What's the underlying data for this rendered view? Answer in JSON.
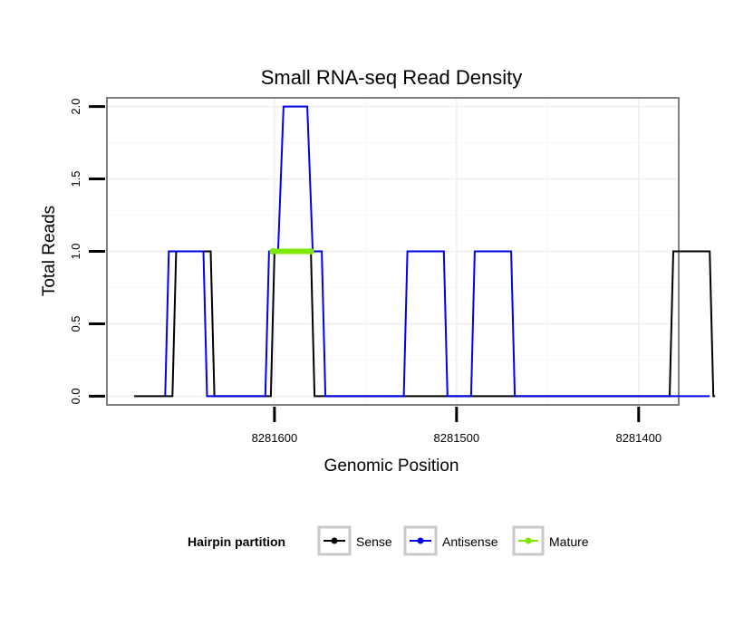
{
  "chart_data": {
    "type": "line",
    "title": "Small RNA-seq Read Density",
    "xlabel": "Genomic Position",
    "ylabel": "Total Reads",
    "x_reversed": true,
    "xlim": [
      8281692,
      8281378
    ],
    "ylim": [
      -0.06,
      2.06
    ],
    "x_ticks": [
      8281600,
      8281500,
      8281400
    ],
    "x_tick_labels": [
      "8281600",
      "8281500",
      "8281400"
    ],
    "y_ticks": [
      0,
      0.5,
      1,
      1.5,
      2
    ],
    "y_tick_labels": [
      "0.0",
      "0.5",
      "1.0",
      "1.5",
      "2.0"
    ],
    "grid": true,
    "legend": {
      "title": "Hairpin partition",
      "position": "bottom",
      "entries": [
        {
          "label": "Sense",
          "color": "#000000"
        },
        {
          "label": "Antisense",
          "color": "#0000ee"
        },
        {
          "label": "Mature",
          "color": "#7fe800"
        }
      ]
    },
    "series": [
      {
        "name": "Sense",
        "color": "#000000",
        "x": [
          8281677,
          8281656,
          8281654,
          8281635,
          8281633,
          8281602,
          8281600,
          8281580,
          8281578,
          8281383,
          8281381,
          8281361,
          8281359,
          8281358
        ],
        "y": [
          0,
          0,
          1,
          1,
          0,
          0,
          1,
          1,
          0,
          0,
          1,
          1,
          0,
          0
        ]
      },
      {
        "name": "Antisense",
        "color": "#0000ee",
        "x": [
          8281660,
          8281658,
          8281639,
          8281637,
          8281605,
          8281603,
          8281598,
          8281595,
          8281582,
          8281579,
          8281574,
          8281572,
          8281529,
          8281527,
          8281507,
          8281505,
          8281492,
          8281490,
          8281470,
          8281468,
          8281383,
          8281361
        ],
        "y": [
          0,
          1,
          1,
          0,
          0,
          1,
          1,
          2,
          2,
          1,
          1,
          0,
          0,
          1,
          1,
          0,
          0,
          1,
          1,
          0,
          0,
          0
        ]
      },
      {
        "name": "Mature",
        "color": "#7fe800",
        "x": [
          8281601,
          8281580
        ],
        "y": [
          1,
          1
        ]
      }
    ]
  }
}
